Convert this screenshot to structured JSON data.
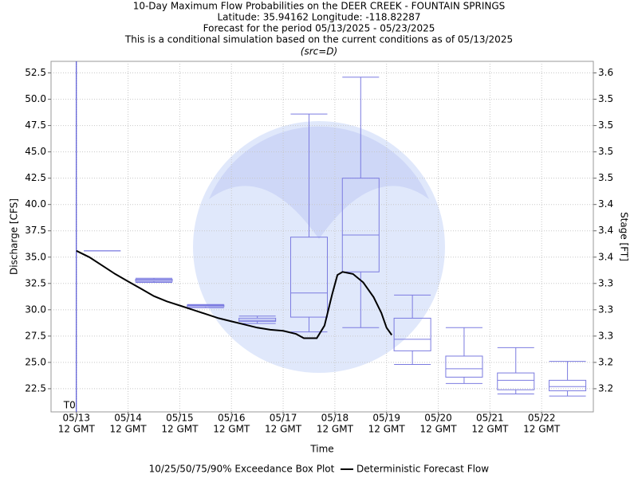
{
  "chart_data": {
    "type": "box",
    "title": [
      "10-Day Maximum Flow Probabilities on the DEER CREEK - FOUNTAIN SPRINGS",
      "Latitude: 35.94162 Longitude: -118.82287",
      "Forecast for the period 05/13/2025 - 05/23/2025",
      "This is a conditional simulation based on the current conditions as of 05/13/2025"
    ],
    "subtitle": "(src=D)",
    "x_label": "Time",
    "y_label": "Discharge [CFS]",
    "y2_label": "Stage [FT]",
    "xlim": [
      -0.49,
      10.0
    ],
    "xticks": [
      {
        "value": 0,
        "label": [
          "05/13",
          "12 GMT"
        ]
      },
      {
        "value": 1,
        "label": [
          "05/14",
          "12 GMT"
        ]
      },
      {
        "value": 2,
        "label": [
          "05/15",
          "12 GMT"
        ]
      },
      {
        "value": 3,
        "label": [
          "05/16",
          "12 GMT"
        ]
      },
      {
        "value": 4,
        "label": [
          "05/17",
          "12 GMT"
        ]
      },
      {
        "value": 5,
        "label": [
          "05/18",
          "12 GMT"
        ]
      },
      {
        "value": 6,
        "label": [
          "05/19",
          "12 GMT"
        ]
      },
      {
        "value": 7,
        "label": [
          "05/20",
          "12 GMT"
        ]
      },
      {
        "value": 8,
        "label": [
          "05/21",
          "12 GMT"
        ]
      },
      {
        "value": 9,
        "label": [
          "05/22",
          "12 GMT"
        ]
      }
    ],
    "ylim": [
      20.3,
      53.6
    ],
    "yticks": [
      22.5,
      {
        "value": 25,
        "label": "25.0"
      },
      27.5,
      {
        "value": 30,
        "label": "30.0"
      },
      32.5,
      {
        "value": 35,
        "label": "35.0"
      },
      37.5,
      {
        "value": 40,
        "label": "40.0"
      },
      42.5,
      {
        "value": 45,
        "label": "45.0"
      },
      47.5,
      {
        "value": 50,
        "label": "50.0"
      },
      52.5
    ],
    "y2lim": [
      3.1735,
      3.58975
    ],
    "y2ticks": [
      {
        "value": 3.201,
        "label": "3.2"
      },
      {
        "value": 3.23225,
        "label": "3.2"
      },
      {
        "value": 3.2635,
        "label": "3.3"
      },
      {
        "value": 3.29475,
        "label": "3.3"
      },
      {
        "value": 3.326,
        "label": "3.3"
      },
      {
        "value": 3.35725,
        "label": "3.4"
      },
      {
        "value": 3.3885,
        "label": "3.4"
      },
      {
        "value": 3.41975,
        "label": "3.4"
      },
      {
        "value": 3.451,
        "label": "3.5"
      },
      {
        "value": 3.48225,
        "label": "3.5"
      },
      {
        "value": 3.5135,
        "label": "3.5"
      },
      {
        "value": 3.54475,
        "label": "3.5"
      },
      {
        "value": 3.576,
        "label": "3.6"
      }
    ],
    "grid": true,
    "marker": {
      "x": 0,
      "label": "T0",
      "color": "#3333cc"
    },
    "series": [
      {
        "name": "10/25/50/75/90% Exceedance Box Plot",
        "color": "#7b7be0",
        "x": [
          0.5,
          1.5,
          2.5,
          3.5,
          4.5,
          5.5,
          6.5,
          7.5,
          8.5,
          9.5
        ],
        "p10": [
          35.6,
          32.6,
          30.2,
          28.7,
          27.9,
          28.3,
          24.8,
          23.0,
          22.0,
          21.8
        ],
        "p25": [
          35.6,
          32.7,
          30.3,
          28.9,
          29.3,
          33.6,
          26.1,
          23.6,
          22.4,
          22.3
        ],
        "p50": [
          35.6,
          32.8,
          30.4,
          29.0,
          31.6,
          37.1,
          27.2,
          24.4,
          23.3,
          22.7
        ],
        "p75": [
          35.6,
          32.9,
          30.45,
          29.2,
          36.9,
          42.5,
          29.2,
          25.6,
          24.0,
          23.3
        ],
        "p90": [
          35.6,
          33.0,
          30.5,
          29.4,
          48.6,
          52.1,
          31.4,
          28.3,
          26.4,
          25.1
        ]
      },
      {
        "name": "Deterministic Forecast Flow",
        "color": "#000000",
        "x": [
          0,
          0.25,
          0.5,
          0.75,
          1,
          1.25,
          1.5,
          1.75,
          2,
          2.25,
          2.5,
          2.75,
          3,
          3.25,
          3.5,
          3.75,
          4,
          4.25,
          4.4,
          4.65,
          4.8,
          4.95,
          5.05,
          5.15,
          5.35,
          5.55,
          5.75,
          5.9,
          6.0,
          6.1
        ],
        "values": [
          35.6,
          35.0,
          34.2,
          33.4,
          32.7,
          32.0,
          31.3,
          30.8,
          30.4,
          30.0,
          29.6,
          29.2,
          28.9,
          28.6,
          28.3,
          28.1,
          28.0,
          27.7,
          27.3,
          27.3,
          28.5,
          31.5,
          33.3,
          33.6,
          33.4,
          32.6,
          31.2,
          29.7,
          28.3,
          27.6
        ]
      }
    ]
  }
}
